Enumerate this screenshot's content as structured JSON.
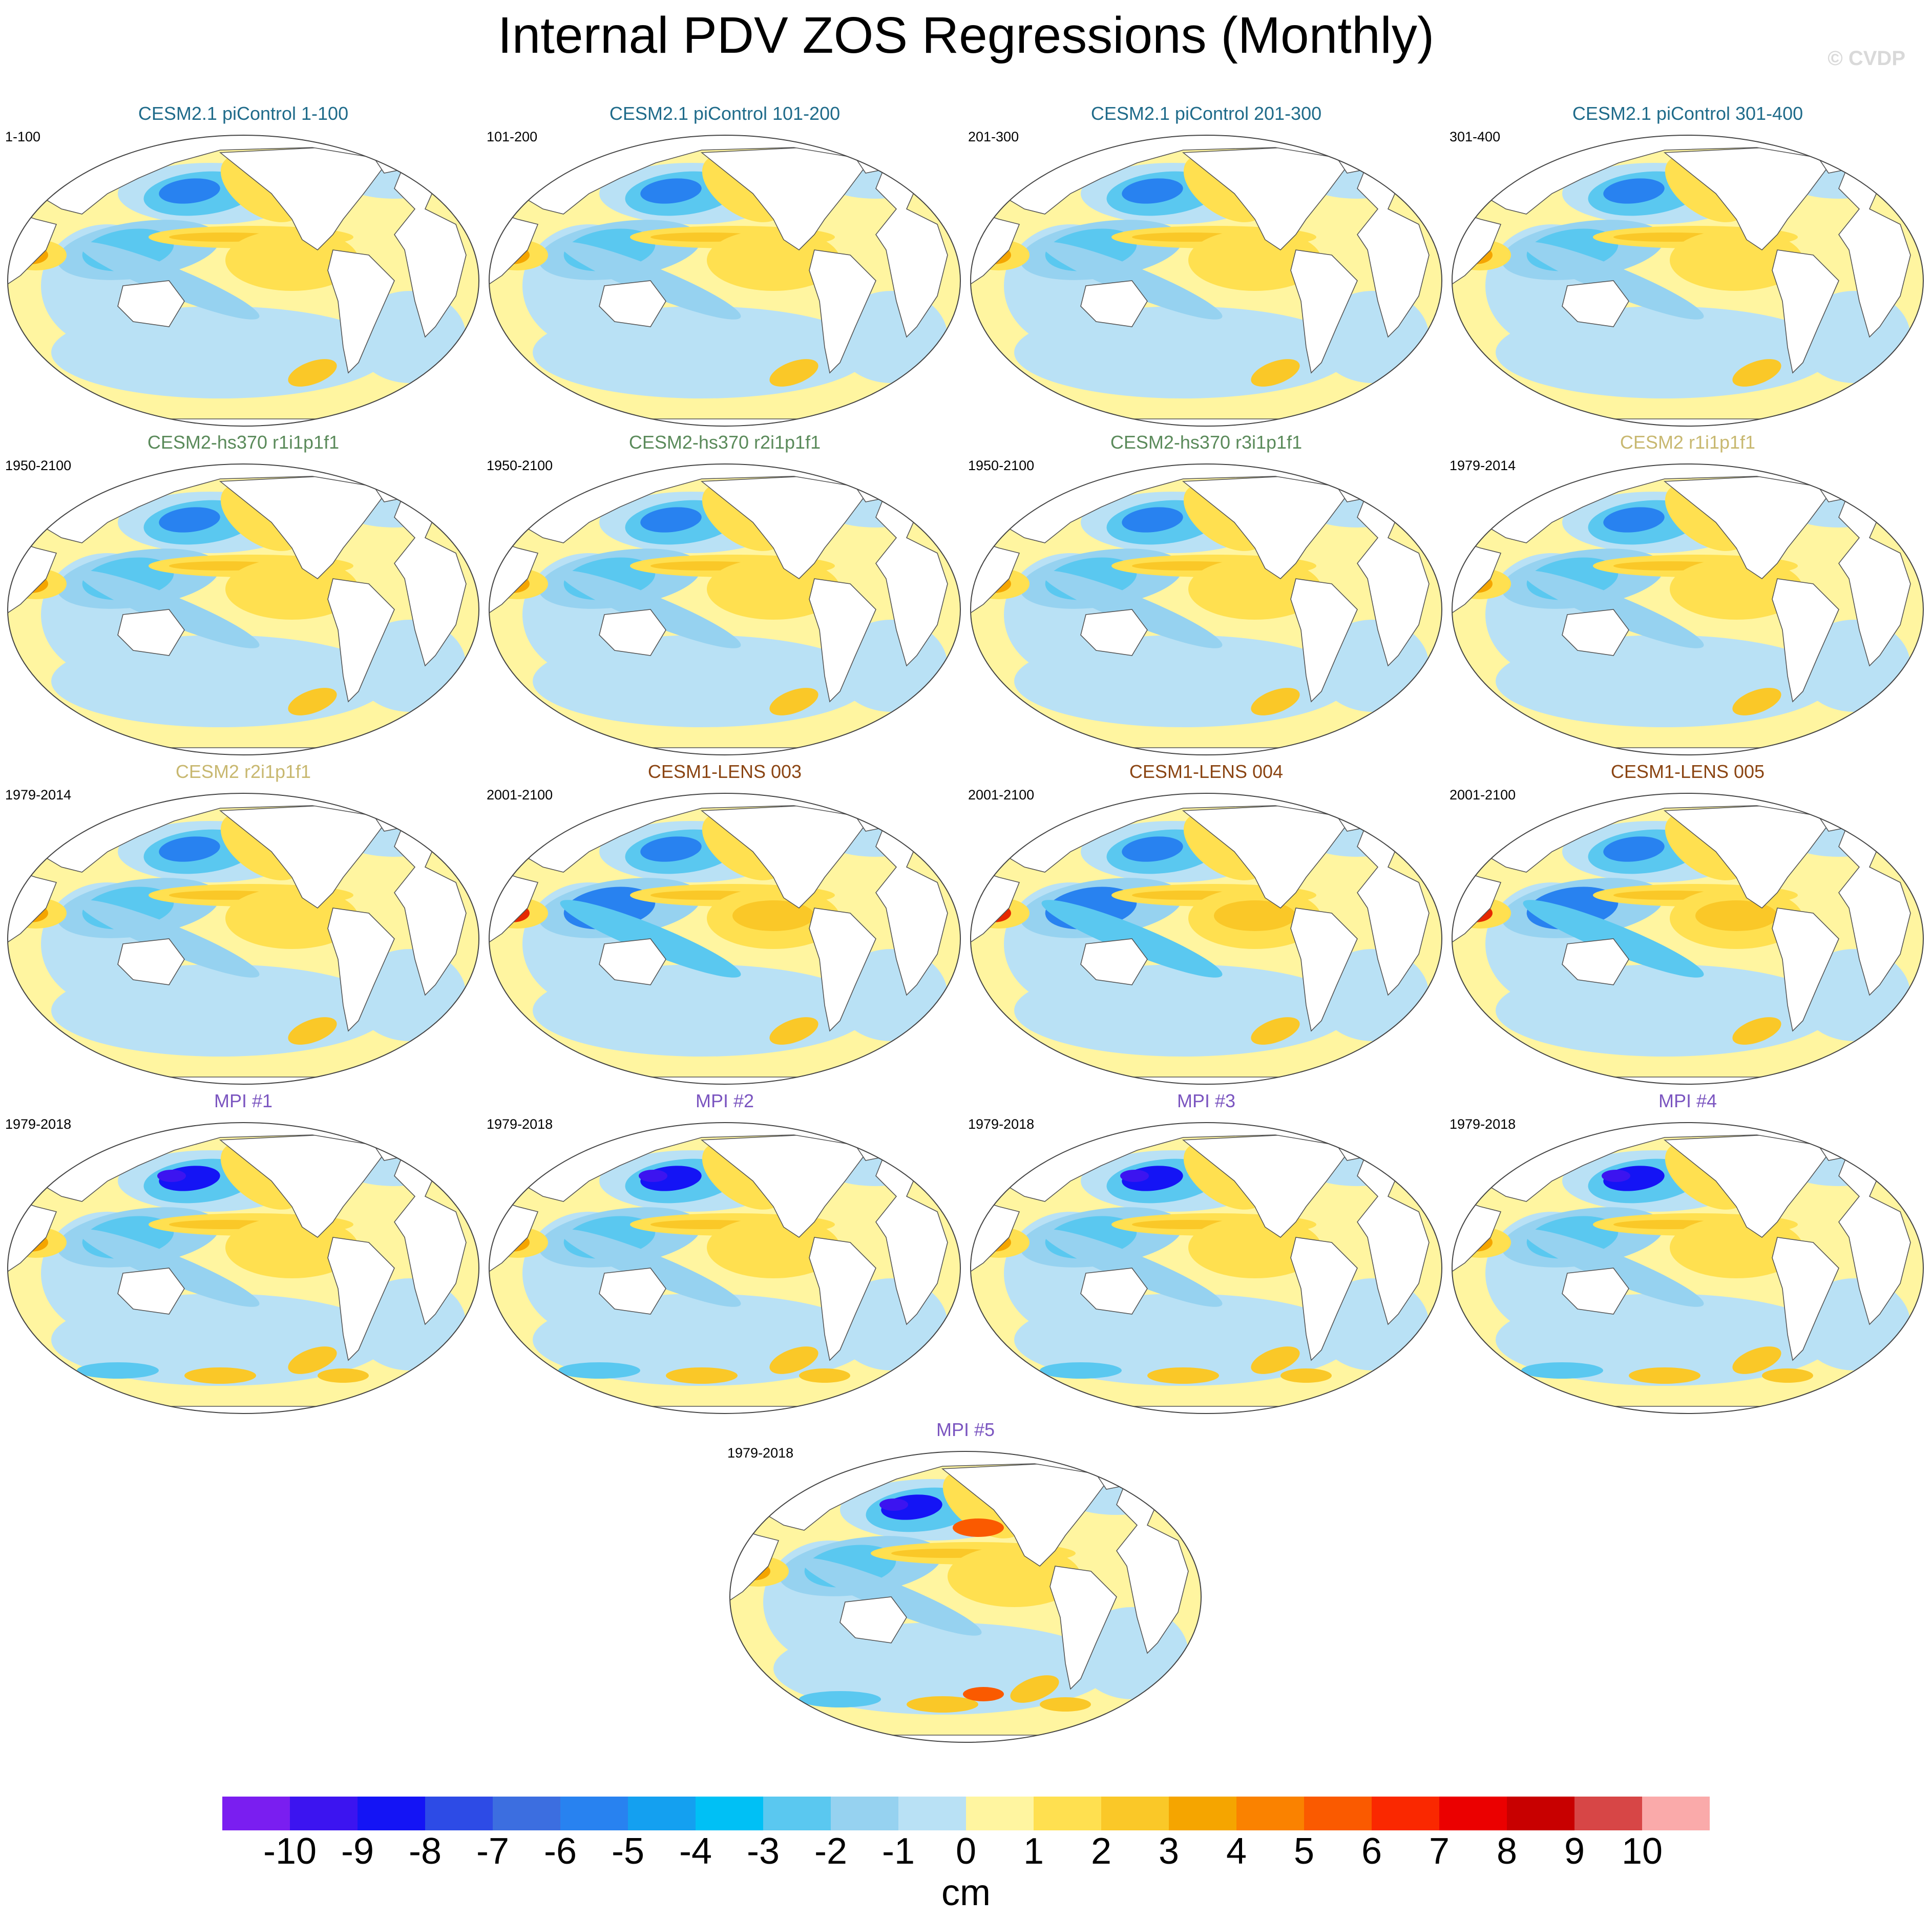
{
  "title": "Internal PDV ZOS Regressions (Monthly)",
  "watermark": "© CVDP",
  "panels": [
    {
      "title": "CESM2.1 piControl 1-100",
      "period": "1-100",
      "color": "#1f6b8a",
      "variant": "pic"
    },
    {
      "title": "CESM2.1 piControl 101-200",
      "period": "101-200",
      "color": "#1f6b8a",
      "variant": "pic"
    },
    {
      "title": "CESM2.1 piControl 201-300",
      "period": "201-300",
      "color": "#1f6b8a",
      "variant": "pic"
    },
    {
      "title": "CESM2.1 piControl 301-400",
      "period": "301-400",
      "color": "#1f6b8a",
      "variant": "pic"
    },
    {
      "title": "CESM2-hs370 r1i1p1f1",
      "period": "1950-2100",
      "color": "#5a8a5a",
      "variant": "hs"
    },
    {
      "title": "CESM2-hs370 r2i1p1f1",
      "period": "1950-2100",
      "color": "#5a8a5a",
      "variant": "hs"
    },
    {
      "title": "CESM2-hs370 r3i1p1f1",
      "period": "1950-2100",
      "color": "#5a8a5a",
      "variant": "hs"
    },
    {
      "title": "CESM2 r1i1p1f1",
      "period": "1979-2014",
      "color": "#c8b870",
      "variant": "weak"
    },
    {
      "title": "CESM2 r2i1p1f1",
      "period": "1979-2014",
      "color": "#c8b870",
      "variant": "weak"
    },
    {
      "title": "CESM1-LENS 003",
      "period": "2001-2100",
      "color": "#8b4513",
      "variant": "lens"
    },
    {
      "title": "CESM1-LENS 004",
      "period": "2001-2100",
      "color": "#8b4513",
      "variant": "lens"
    },
    {
      "title": "CESM1-LENS 005",
      "period": "2001-2100",
      "color": "#8b4513",
      "variant": "lens"
    },
    {
      "title": "MPI #1",
      "period": "1979-2018",
      "color": "#7b55c0",
      "variant": "mpi"
    },
    {
      "title": "MPI #2",
      "period": "1979-2018",
      "color": "#7b55c0",
      "variant": "mpi"
    },
    {
      "title": "MPI #3",
      "period": "1979-2018",
      "color": "#7b55c0",
      "variant": "mpi"
    },
    {
      "title": "MPI #4",
      "period": "1979-2018",
      "color": "#7b55c0",
      "variant": "mpi"
    },
    {
      "title": "MPI #5",
      "period": "1979-2018",
      "color": "#7b55c0",
      "variant": "mpi5"
    }
  ],
  "colorbar": {
    "units": "cm",
    "labels": [
      "-10",
      "-9",
      "-8",
      "-7",
      "-6",
      "-5",
      "-4",
      "-3",
      "-2",
      "-1",
      "0",
      "1",
      "2",
      "3",
      "4",
      "5",
      "6",
      "7",
      "8",
      "9",
      "10"
    ],
    "colors": [
      "#7a1ef0",
      "#3c14f0",
      "#1414f5",
      "#2d4be6",
      "#3c6ee0",
      "#2882f0",
      "#14a0f0",
      "#00c0f5",
      "#5ac8f0",
      "#96d2f0",
      "#b9e1f5",
      "#fff5a0",
      "#ffe050",
      "#fac828",
      "#f5a500",
      "#fa8200",
      "#fa5a00",
      "#fa2800",
      "#eb0000",
      "#c80000",
      "#d74646",
      "#faaaaa"
    ]
  }
}
